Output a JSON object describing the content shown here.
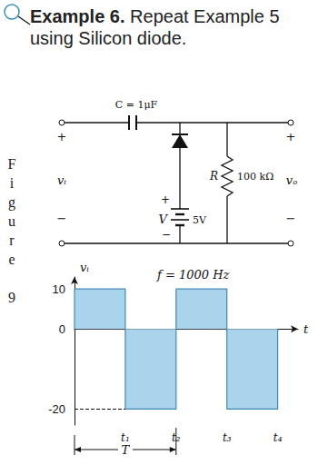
{
  "title": {
    "bold": "Example 6.",
    "text": "Repeat Example 5 using Silicon diode."
  },
  "side_label": "Figure 9",
  "circuit": {
    "input_plus": "+",
    "input_label": "vᵢ",
    "input_minus": "−",
    "capacitor": "C = 1μF",
    "resistor_name": "R",
    "resistor_value": "100 kΩ",
    "source_plus": "+",
    "source_minus": "−",
    "source_name": "V",
    "source_value": "5V",
    "output_plus": "+",
    "output_label": "vₒ",
    "output_minus": "−"
  },
  "chart_data": {
    "type": "line",
    "annotation": "f = 1000 Hz",
    "x_label": "t",
    "y_label": "vᵢ",
    "x": [
      0,
      0,
      1,
      1,
      2,
      2,
      3,
      3,
      4,
      4
    ],
    "values": [
      0,
      10,
      10,
      -20,
      -20,
      10,
      10,
      -20,
      -20,
      0
    ],
    "color": "#a9d4ec",
    "xlim": [
      0,
      4.4
    ],
    "xticks": [
      {
        "value": 1,
        "label": "t₁"
      },
      {
        "value": 2,
        "label": "t₂"
      },
      {
        "value": 3,
        "label": "t₃"
      },
      {
        "value": 4,
        "label": "t₄"
      }
    ],
    "ylim": [
      -24,
      13
    ],
    "yticks": [
      -20,
      0,
      10
    ],
    "period": {
      "label": "T",
      "from": 0,
      "to": 2
    },
    "grid": false
  }
}
